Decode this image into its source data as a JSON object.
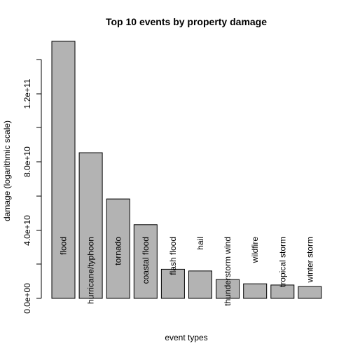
{
  "chart_data": {
    "type": "bar",
    "title": "Top 10 events by property damage",
    "xlabel": "event types",
    "ylabel": "damage (logarithmic scale)",
    "ylim": [
      0,
      150000000000
    ],
    "yticks": [
      "0.0e+00",
      "4.0e+10",
      "8.0e+10",
      "1.2e+11"
    ],
    "ytick_values": [
      0,
      40000000000,
      80000000000,
      120000000000
    ],
    "categories": [
      "flood",
      "hurricane/typhoon",
      "tornado",
      "coastal flood",
      "flash flood",
      "hail",
      "thunderstorm wind",
      "wildfire",
      "tropical storm",
      "winter storm"
    ],
    "values": [
      150000000000,
      85000000000,
      58000000000,
      43000000000,
      17000000000,
      16000000000,
      11000000000,
      8500000000,
      7800000000,
      6900000000
    ],
    "bar_color": "#b3b3b3",
    "grid": false
  }
}
